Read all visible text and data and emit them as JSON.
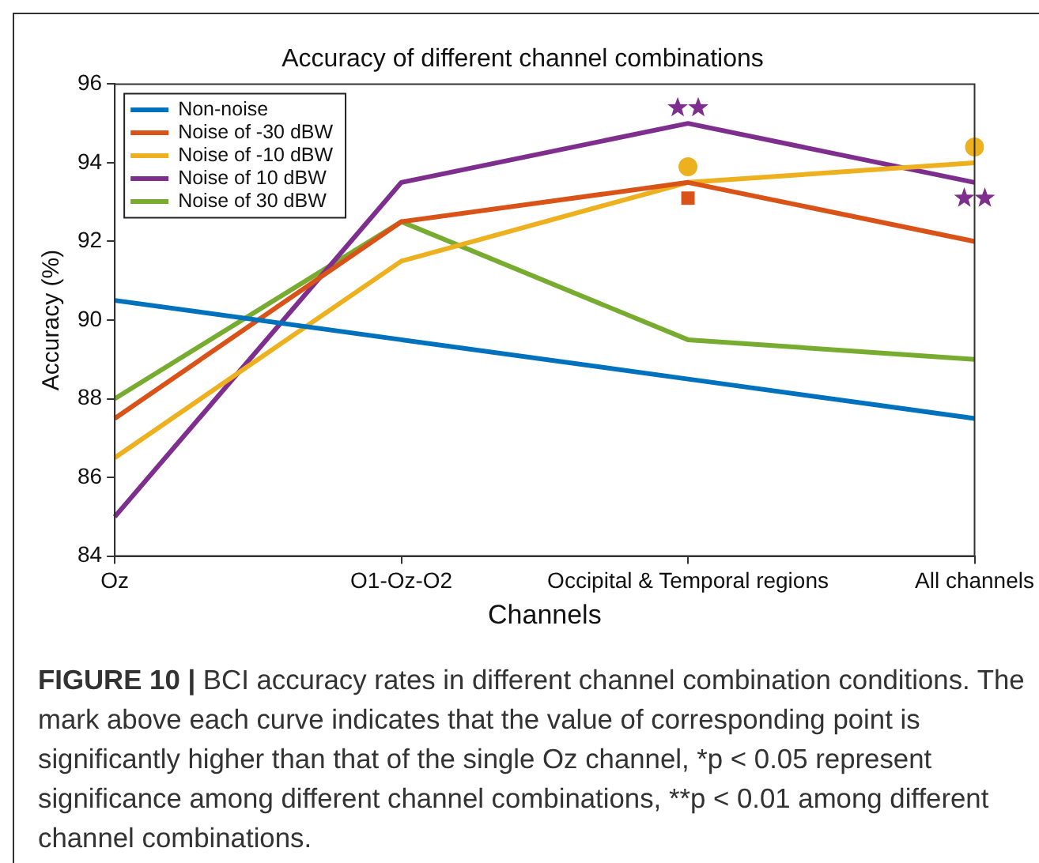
{
  "chart_data": {
    "type": "line",
    "title": "Accuracy of different channel combinations",
    "xlabel": "Channels",
    "ylabel": "Accuracy (%)",
    "categories": [
      "Oz",
      "O1-Oz-O2",
      "Occipital & Temporal regions",
      "All channels"
    ],
    "series": [
      {
        "name": "Non-noise",
        "color": "#0072bd",
        "values": [
          90.5,
          89.5,
          88.5,
          87.5
        ]
      },
      {
        "name": "Noise of -30 dBW",
        "color": "#d95319",
        "values": [
          87.5,
          92.5,
          93.5,
          92
        ]
      },
      {
        "name": "Noise of -10 dBW",
        "color": "#edb120",
        "values": [
          86.5,
          91.5,
          93.5,
          94
        ]
      },
      {
        "name": "Noise of 10 dBW",
        "color": "#7e2f8e",
        "values": [
          85,
          93.5,
          95,
          93.5
        ]
      },
      {
        "name": "Noise of 30 dBW",
        "color": "#77ac30",
        "values": [
          88,
          92.5,
          89.5,
          89
        ]
      },
      {
        "type": "scatter",
        "marker": "circle",
        "color": "#edb120",
        "x": [
          "Occipital & Temporal regions",
          "All channels"
        ],
        "values": [
          93.9,
          94.4
        ]
      },
      {
        "type": "scatter",
        "marker": "square",
        "color": "#d95319",
        "x": [
          "Occipital & Temporal regions"
        ],
        "values": [
          93.1
        ]
      },
      {
        "type": "scatter",
        "marker": "star",
        "color": "#7e2f8e",
        "x": [
          "Occipital & Temporal regions",
          "All channels"
        ],
        "values": [
          95.4,
          93.1
        ]
      },
      {
        "type": "scatter",
        "marker": "star",
        "color": "#7e2f8e",
        "x": [
          "Occipital & Temporal regions",
          "All channels"
        ],
        "values": [
          95.4,
          93.1
        ]
      }
    ],
    "ylim": [
      84,
      96
    ],
    "yticks": [
      84,
      86,
      88,
      90,
      92,
      94,
      96
    ],
    "grid": false,
    "legend": "top left",
    "marker": "none",
    "line_style": "solid",
    "annotations": [
      "FIGURE 10 |",
      "BCI accuracy rates in different channel combination conditions. The mark above each curve indicates that the value of corresponding point is significantly higher than that of the single Oz channel, *p < 0.05 represent significance among different channel combinations, **p < 0.01 among different channel combinations."
    ]
  }
}
